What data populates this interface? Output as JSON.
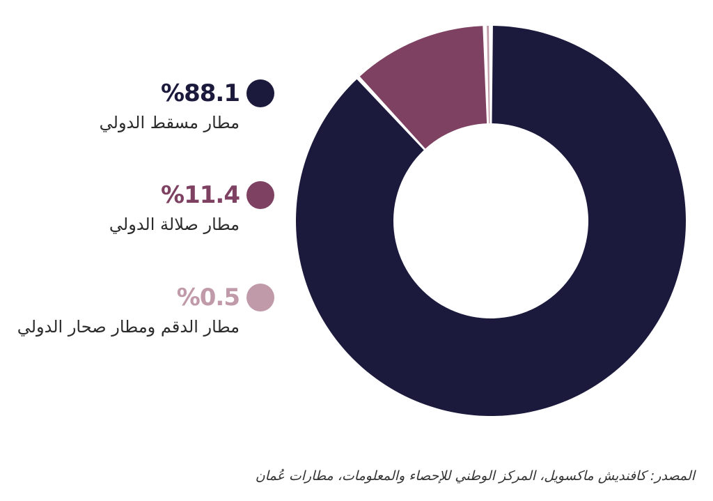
{
  "chart_data": {
    "type": "pie",
    "categories": [
      "مطار مسقط الدولي",
      "مطار صلالة الدولي",
      "مطار الدقم ومطار صحار الدولي"
    ],
    "values": [
      88.1,
      11.4,
      0.5
    ],
    "value_labels": [
      "%88.1",
      "%11.4",
      "%0.5"
    ],
    "colors": [
      "#1c1a3c",
      "#7e4162",
      "#c09aa8"
    ],
    "legend_placement": "left",
    "style": "donut"
  },
  "source": "المصدر: كافنديش ماكسويل، المركز الوطني للإحصاء والمعلومات، مطارات عُمان"
}
